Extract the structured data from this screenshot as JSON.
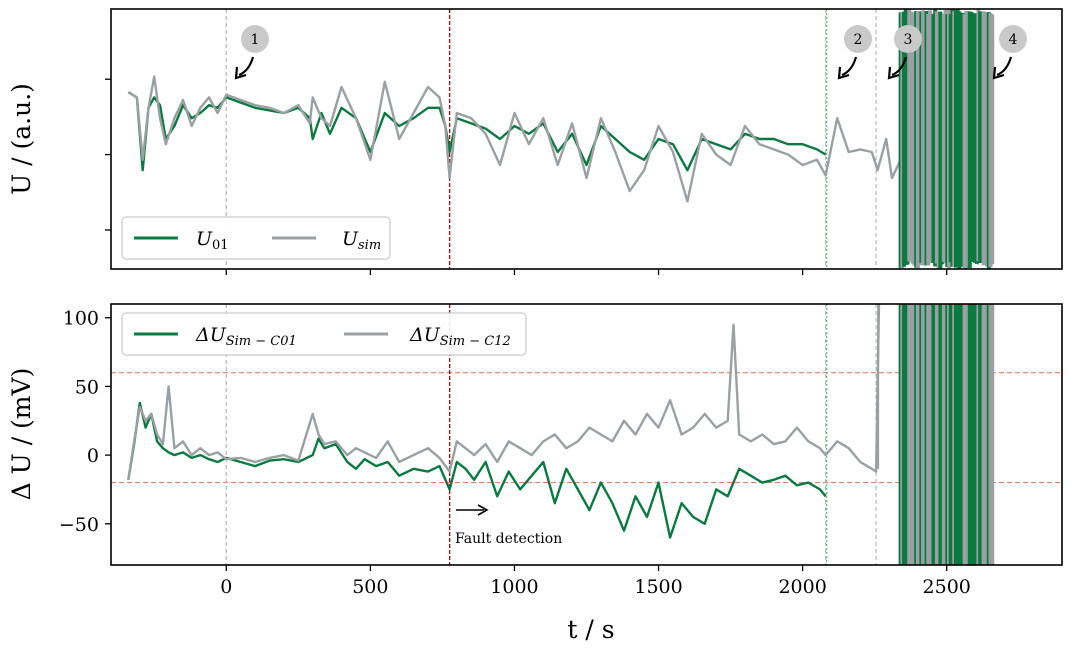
{
  "chart_data": {
    "type": "line",
    "xlabel": "t / s",
    "x_ticks": [
      "0",
      "500",
      "1000",
      "1500",
      "2000",
      "2500"
    ],
    "xlim": [
      -400,
      2900
    ],
    "colors": {
      "green": "#0b7a41",
      "gray": "#9aa0a3",
      "redline": "#8b1a1a",
      "redband": "#e08070",
      "vline": "#b8b8b8"
    },
    "vlines": {
      "fault": 775,
      "marker2": 2080,
      "marker3": 2255,
      "marker4": 2610
    },
    "top": {
      "ylabel": "U / (a.u.)",
      "ylim": [
        0,
        1
      ],
      "legend": [
        {
          "name_main": "U",
          "name_sub": "01",
          "color": "#0b7a41"
        },
        {
          "name_main": "U",
          "name_sub": "sim",
          "color": "#9aa0a3"
        }
      ],
      "markers": [
        {
          "label": "1",
          "x": 0
        },
        {
          "label": "2",
          "x": 2080
        },
        {
          "label": "3",
          "x": 2255
        },
        {
          "label": "4",
          "x": 2610
        }
      ]
    },
    "bottom": {
      "ylabel": "Δ U / (mV)",
      "ylim": [
        -80,
        110
      ],
      "y_ticks": [
        "−50",
        "0",
        "50",
        "100"
      ],
      "threshold_upper": 60,
      "threshold_lower": -20,
      "legend": [
        {
          "name_main": "ΔU",
          "name_sub": "Sim − C01",
          "color": "#0b7a41"
        },
        {
          "name_main": "ΔU",
          "name_sub": "Sim − C12",
          "color": "#9aa0a3"
        }
      ],
      "annotation": "Fault detection"
    },
    "series": [
      {
        "name": "U01",
        "panel": "top",
        "x": [
          -340,
          -310,
          -290,
          -270,
          -250,
          -230,
          -210,
          -180,
          -150,
          -120,
          -90,
          -60,
          -30,
          0,
          50,
          100,
          150,
          200,
          250,
          290,
          300,
          330,
          360,
          400,
          450,
          500,
          550,
          600,
          650,
          700,
          740,
          760,
          775,
          800,
          850,
          900,
          950,
          1000,
          1050,
          1100,
          1150,
          1200,
          1250,
          1300,
          1350,
          1400,
          1450,
          1500,
          1550,
          1600,
          1650,
          1700,
          1750,
          1800,
          1850,
          1900,
          1950,
          2000,
          2050,
          2080
        ],
        "values": [
          0.68,
          0.66,
          0.38,
          0.62,
          0.66,
          0.63,
          0.5,
          0.55,
          0.63,
          0.58,
          0.6,
          0.63,
          0.62,
          0.66,
          0.64,
          0.62,
          0.61,
          0.6,
          0.62,
          0.58,
          0.5,
          0.6,
          0.52,
          0.62,
          0.58,
          0.45,
          0.6,
          0.55,
          0.58,
          0.62,
          0.62,
          0.55,
          0.45,
          0.58,
          0.56,
          0.54,
          0.5,
          0.55,
          0.52,
          0.56,
          0.45,
          0.52,
          0.4,
          0.55,
          0.5,
          0.45,
          0.42,
          0.5,
          0.48,
          0.38,
          0.5,
          0.48,
          0.46,
          0.52,
          0.5,
          0.5,
          0.48,
          0.48,
          0.46,
          0.44
        ]
      },
      {
        "name": "Usim",
        "panel": "top",
        "x": [
          -340,
          -310,
          -290,
          -270,
          -250,
          -230,
          -210,
          -180,
          -150,
          -120,
          -90,
          -60,
          -30,
          0,
          50,
          100,
          150,
          200,
          250,
          290,
          300,
          330,
          360,
          400,
          450,
          500,
          550,
          600,
          650,
          700,
          740,
          760,
          775,
          800,
          850,
          900,
          950,
          1000,
          1050,
          1100,
          1150,
          1200,
          1250,
          1300,
          1350,
          1400,
          1450,
          1500,
          1550,
          1600,
          1650,
          1700,
          1750,
          1800,
          1850,
          1900,
          1950,
          2000,
          2050,
          2080,
          2120,
          2160,
          2200,
          2240,
          2260,
          2290,
          2310,
          2340,
          2380,
          2420,
          2460,
          2500,
          2540,
          2580,
          2620
        ],
        "values": [
          0.68,
          0.66,
          0.42,
          0.62,
          0.74,
          0.58,
          0.48,
          0.58,
          0.65,
          0.55,
          0.62,
          0.66,
          0.6,
          0.67,
          0.65,
          0.63,
          0.62,
          0.6,
          0.63,
          0.56,
          0.66,
          0.58,
          0.55,
          0.7,
          0.58,
          0.42,
          0.72,
          0.5,
          0.6,
          0.7,
          0.66,
          0.55,
          0.35,
          0.6,
          0.58,
          0.52,
          0.4,
          0.6,
          0.48,
          0.58,
          0.4,
          0.56,
          0.35,
          0.58,
          0.45,
          0.3,
          0.38,
          0.55,
          0.45,
          0.26,
          0.52,
          0.44,
          0.4,
          0.55,
          0.48,
          0.46,
          0.44,
          0.4,
          0.42,
          0.36,
          0.58,
          0.45,
          0.46,
          0.45,
          0.38,
          0.5,
          0.35,
          0.42,
          0.3,
          0.22,
          0.35,
          0.2,
          0.28,
          0.25,
          0.3
        ]
      },
      {
        "name": "ΔU Sim−C01",
        "panel": "bottom",
        "x": [
          -340,
          -320,
          -300,
          -280,
          -260,
          -240,
          -220,
          -200,
          -180,
          -150,
          -120,
          -90,
          -60,
          -30,
          0,
          50,
          100,
          150,
          200,
          250,
          300,
          320,
          340,
          380,
          420,
          450,
          480,
          520,
          560,
          600,
          650,
          700,
          740,
          775,
          800,
          830,
          860,
          900,
          940,
          980,
          1020,
          1060,
          1100,
          1140,
          1180,
          1220,
          1260,
          1300,
          1340,
          1380,
          1420,
          1460,
          1500,
          1540,
          1580,
          1620,
          1660,
          1700,
          1740,
          1780,
          1820,
          1860,
          1900,
          1940,
          1980,
          2020,
          2060,
          2080
        ],
        "values": [
          -18,
          8,
          38,
          20,
          30,
          10,
          5,
          2,
          0,
          2,
          -2,
          0,
          -3,
          -5,
          -2,
          -5,
          -8,
          -4,
          -3,
          -5,
          0,
          12,
          5,
          8,
          -5,
          -10,
          -3,
          -8,
          -5,
          -15,
          -10,
          -12,
          -8,
          -25,
          -5,
          -10,
          -18,
          -5,
          -30,
          -12,
          -25,
          -15,
          -5,
          -35,
          -10,
          -25,
          -40,
          -20,
          -35,
          -55,
          -30,
          -45,
          -20,
          -60,
          -35,
          -45,
          -50,
          -25,
          -30,
          -10,
          -15,
          -20,
          -18,
          -15,
          -22,
          -20,
          -25,
          -30
        ]
      },
      {
        "name": "ΔU Sim−C12",
        "panel": "bottom",
        "x": [
          -340,
          -320,
          -300,
          -280,
          -260,
          -240,
          -220,
          -200,
          -180,
          -150,
          -120,
          -90,
          -60,
          -30,
          0,
          50,
          100,
          150,
          200,
          250,
          300,
          320,
          340,
          380,
          420,
          450,
          480,
          520,
          560,
          600,
          650,
          700,
          740,
          775,
          800,
          830,
          860,
          900,
          940,
          980,
          1020,
          1060,
          1100,
          1140,
          1180,
          1220,
          1260,
          1300,
          1340,
          1380,
          1420,
          1460,
          1500,
          1540,
          1580,
          1620,
          1660,
          1700,
          1740,
          1760,
          1780,
          1820,
          1860,
          1900,
          1940,
          1980,
          2020,
          2060,
          2080,
          2120,
          2160,
          2200,
          2240,
          2255,
          2265
        ],
        "values": [
          -18,
          10,
          35,
          25,
          30,
          15,
          8,
          50,
          5,
          10,
          0,
          5,
          0,
          2,
          -3,
          -2,
          -5,
          -2,
          0,
          -4,
          30,
          15,
          8,
          10,
          0,
          5,
          2,
          -2,
          10,
          -5,
          0,
          5,
          -2,
          -12,
          10,
          5,
          0,
          8,
          -5,
          10,
          5,
          0,
          10,
          15,
          5,
          10,
          20,
          15,
          10,
          25,
          15,
          30,
          20,
          40,
          15,
          20,
          30,
          20,
          25,
          95,
          15,
          10,
          15,
          8,
          10,
          20,
          10,
          5,
          0,
          10,
          5,
          -5,
          -10,
          -12,
          110
        ]
      }
    ]
  }
}
